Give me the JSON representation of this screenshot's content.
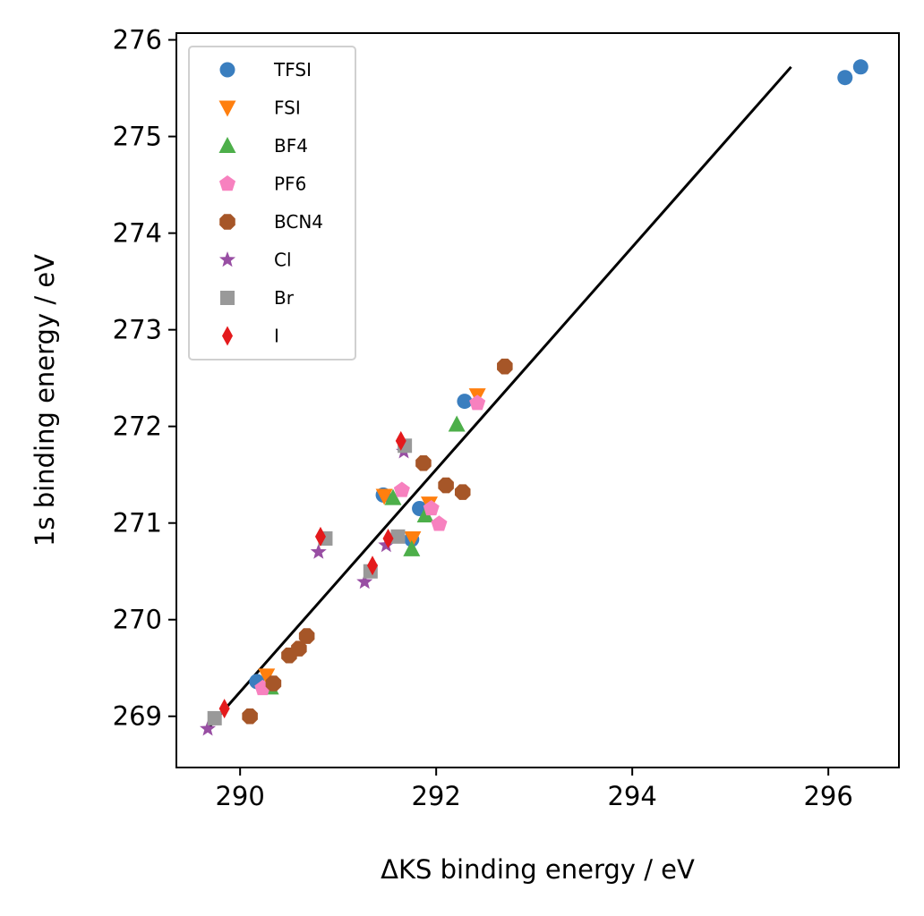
{
  "chart_data": {
    "type": "scatter",
    "xlabel": "ΔKS binding energy / eV",
    "ylabel": "1s binding energy / eV",
    "xlim": [
      289.35,
      296.72
    ],
    "ylim": [
      268.47,
      276.07
    ],
    "xticks": [
      290,
      292,
      294,
      296
    ],
    "yticks": [
      269,
      270,
      271,
      272,
      273,
      274,
      275,
      276
    ],
    "grid": false,
    "legend_position": "upper left",
    "fit_line": {
      "x": [
        289.65,
        295.62
      ],
      "y": [
        268.85,
        275.72
      ],
      "color": "#000000"
    },
    "series": [
      {
        "name": "TFSI",
        "marker": "circle",
        "color": "#3a7ebf",
        "points": [
          [
            296.17,
            275.61
          ],
          [
            296.33,
            275.72
          ],
          [
            292.29,
            272.26
          ],
          [
            291.46,
            271.29
          ],
          [
            291.83,
            271.15
          ],
          [
            291.75,
            270.83
          ],
          [
            290.17,
            269.36
          ]
        ]
      },
      {
        "name": "FSI",
        "marker": "triangle-down",
        "color": "#ff7f0e",
        "points": [
          [
            292.42,
            272.32
          ],
          [
            291.47,
            271.28
          ],
          [
            291.93,
            271.2
          ],
          [
            291.76,
            270.84
          ],
          [
            290.27,
            269.42
          ]
        ]
      },
      {
        "name": "BF4",
        "marker": "triangle-up",
        "color": "#4daf4a",
        "points": [
          [
            292.21,
            272.02
          ],
          [
            291.56,
            271.26
          ],
          [
            291.89,
            271.08
          ],
          [
            291.75,
            270.73
          ],
          [
            290.31,
            269.3
          ]
        ]
      },
      {
        "name": "PF6",
        "marker": "pentagon",
        "color": "#f781bf",
        "points": [
          [
            292.42,
            272.24
          ],
          [
            291.65,
            271.34
          ],
          [
            291.95,
            271.15
          ],
          [
            292.03,
            270.99
          ],
          [
            290.23,
            269.29
          ]
        ]
      },
      {
        "name": "BCN4",
        "marker": "octagon",
        "color": "#a65628",
        "points": [
          [
            292.7,
            272.62
          ],
          [
            291.87,
            271.62
          ],
          [
            292.1,
            271.39
          ],
          [
            292.27,
            271.32
          ],
          [
            290.68,
            269.83
          ],
          [
            290.6,
            269.7
          ],
          [
            290.5,
            269.63
          ],
          [
            290.34,
            269.34
          ],
          [
            290.1,
            269.0
          ]
        ]
      },
      {
        "name": "Cl",
        "marker": "star",
        "color": "#984ea3",
        "points": [
          [
            291.67,
            271.74
          ],
          [
            290.8,
            270.7
          ],
          [
            291.49,
            270.77
          ],
          [
            291.27,
            270.39
          ],
          [
            289.67,
            268.87
          ]
        ]
      },
      {
        "name": "Br",
        "marker": "square",
        "color": "#999999",
        "points": [
          [
            291.68,
            271.8
          ],
          [
            290.87,
            270.84
          ],
          [
            291.61,
            270.86
          ],
          [
            291.33,
            270.5
          ],
          [
            289.74,
            268.98
          ]
        ]
      },
      {
        "name": "I",
        "marker": "thin-diamond",
        "color": "#e41a1c",
        "points": [
          [
            291.64,
            271.85
          ],
          [
            290.82,
            270.86
          ],
          [
            291.51,
            270.84
          ],
          [
            291.35,
            270.56
          ],
          [
            289.84,
            269.08
          ]
        ]
      }
    ]
  }
}
